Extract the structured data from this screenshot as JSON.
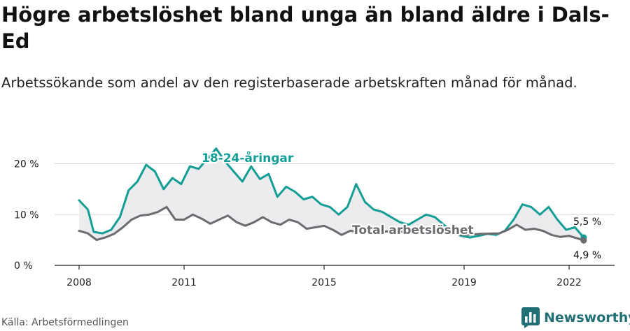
{
  "title": "Högre arbetslöshet bland unga än bland äldre i Dals-Ed",
  "subtitle": "Arbetssökande som andel av den registerbaserade arbetskraften månad för månad.",
  "source": "Källa: Arbetsförmedlingen",
  "brand": {
    "name": "Newsworthy",
    "icon": "bar-chart-logo-icon",
    "color": "#1f6f74"
  },
  "chart_data": {
    "type": "line",
    "x_ticks": [
      "2008",
      "2011",
      "2015",
      "2019",
      "2022"
    ],
    "y_ticks": [
      "0 %",
      "10 %",
      "20 %"
    ],
    "ylim": [
      0,
      23
    ],
    "xlim": [
      "2008-01",
      "2022-06"
    ],
    "grid": true,
    "shaded_area_between_series": true,
    "series": [
      {
        "name": "18-24-åringar",
        "color": "#129e94",
        "end_label": "5,5 %",
        "points": [
          [
            "2008-01",
            12.8
          ],
          [
            "2008-04",
            11.0
          ],
          [
            "2008-06",
            6.6
          ],
          [
            "2008-09",
            6.3
          ],
          [
            "2008-12",
            7.0
          ],
          [
            "2009-03",
            9.5
          ],
          [
            "2009-06",
            14.8
          ],
          [
            "2009-09",
            16.5
          ],
          [
            "2009-12",
            19.8
          ],
          [
            "2010-03",
            18.5
          ],
          [
            "2010-06",
            15.0
          ],
          [
            "2010-09",
            17.2
          ],
          [
            "2010-12",
            16.0
          ],
          [
            "2011-03",
            19.5
          ],
          [
            "2011-06",
            19.0
          ],
          [
            "2011-09",
            21.0
          ],
          [
            "2011-12",
            23.0
          ],
          [
            "2012-03",
            20.5
          ],
          [
            "2012-06",
            18.5
          ],
          [
            "2012-09",
            16.5
          ],
          [
            "2012-12",
            19.5
          ],
          [
            "2013-03",
            17.0
          ],
          [
            "2013-06",
            18.0
          ],
          [
            "2013-09",
            13.5
          ],
          [
            "2013-12",
            15.5
          ],
          [
            "2014-03",
            14.5
          ],
          [
            "2014-06",
            13.0
          ],
          [
            "2014-09",
            13.5
          ],
          [
            "2014-12",
            12.0
          ],
          [
            "2015-03",
            11.5
          ],
          [
            "2015-06",
            10.0
          ],
          [
            "2015-09",
            11.5
          ],
          [
            "2015-12",
            16.0
          ],
          [
            "2016-03",
            12.5
          ],
          [
            "2016-06",
            11.0
          ],
          [
            "2016-09",
            10.5
          ],
          [
            "2016-12",
            9.5
          ],
          [
            "2017-03",
            8.5
          ],
          [
            "2017-06",
            8.0
          ],
          [
            "2017-09",
            9.0
          ],
          [
            "2017-12",
            10.0
          ],
          [
            "2018-03",
            9.5
          ],
          [
            "2018-06",
            8.0
          ],
          [
            "2018-09",
            6.8
          ],
          [
            "2018-12",
            5.8
          ],
          [
            "2019-03",
            5.5
          ],
          [
            "2019-06",
            5.8
          ],
          [
            "2019-09",
            6.2
          ],
          [
            "2019-12",
            6.0
          ],
          [
            "2020-03",
            6.8
          ],
          [
            "2020-06",
            9.0
          ],
          [
            "2020-09",
            12.0
          ],
          [
            "2020-12",
            11.5
          ],
          [
            "2021-03",
            10.0
          ],
          [
            "2021-06",
            11.5
          ],
          [
            "2021-09",
            9.0
          ],
          [
            "2021-12",
            7.0
          ],
          [
            "2022-03",
            7.5
          ],
          [
            "2022-06",
            5.5
          ]
        ]
      },
      {
        "name": "Total arbetslöshet",
        "color": "#6b6b70",
        "end_label": "4,9 %",
        "points": [
          [
            "2008-01",
            6.8
          ],
          [
            "2008-04",
            6.3
          ],
          [
            "2008-07",
            5.0
          ],
          [
            "2008-10",
            5.5
          ],
          [
            "2009-01",
            6.2
          ],
          [
            "2009-04",
            7.5
          ],
          [
            "2009-07",
            9.0
          ],
          [
            "2009-10",
            9.8
          ],
          [
            "2010-01",
            10.0
          ],
          [
            "2010-04",
            10.5
          ],
          [
            "2010-07",
            11.5
          ],
          [
            "2010-10",
            9.0
          ],
          [
            "2011-01",
            9.0
          ],
          [
            "2011-04",
            10.0
          ],
          [
            "2011-07",
            9.2
          ],
          [
            "2011-10",
            8.2
          ],
          [
            "2012-01",
            9.0
          ],
          [
            "2012-04",
            9.8
          ],
          [
            "2012-07",
            8.5
          ],
          [
            "2012-10",
            7.8
          ],
          [
            "2013-01",
            8.5
          ],
          [
            "2013-04",
            9.5
          ],
          [
            "2013-07",
            8.5
          ],
          [
            "2013-10",
            8.0
          ],
          [
            "2014-01",
            9.0
          ],
          [
            "2014-04",
            8.5
          ],
          [
            "2014-07",
            7.2
          ],
          [
            "2014-10",
            7.5
          ],
          [
            "2015-01",
            7.8
          ],
          [
            "2015-04",
            7.0
          ],
          [
            "2015-07",
            6.0
          ],
          [
            "2015-10",
            6.8
          ],
          [
            "2016-01",
            6.6
          ],
          [
            "2016-07",
            6.5
          ],
          [
            "2017-01",
            6.8
          ],
          [
            "2017-07",
            6.4
          ],
          [
            "2018-01",
            6.6
          ],
          [
            "2018-07",
            6.3
          ],
          [
            "2019-01",
            6.0
          ],
          [
            "2019-07",
            6.2
          ],
          [
            "2020-01",
            6.3
          ],
          [
            "2020-04",
            7.0
          ],
          [
            "2020-07",
            8.0
          ],
          [
            "2020-10",
            7.0
          ],
          [
            "2021-01",
            7.2
          ],
          [
            "2021-04",
            6.8
          ],
          [
            "2021-07",
            6.0
          ],
          [
            "2021-10",
            5.6
          ],
          [
            "2022-01",
            5.8
          ],
          [
            "2022-04",
            5.3
          ],
          [
            "2022-06",
            4.9
          ]
        ]
      }
    ]
  }
}
